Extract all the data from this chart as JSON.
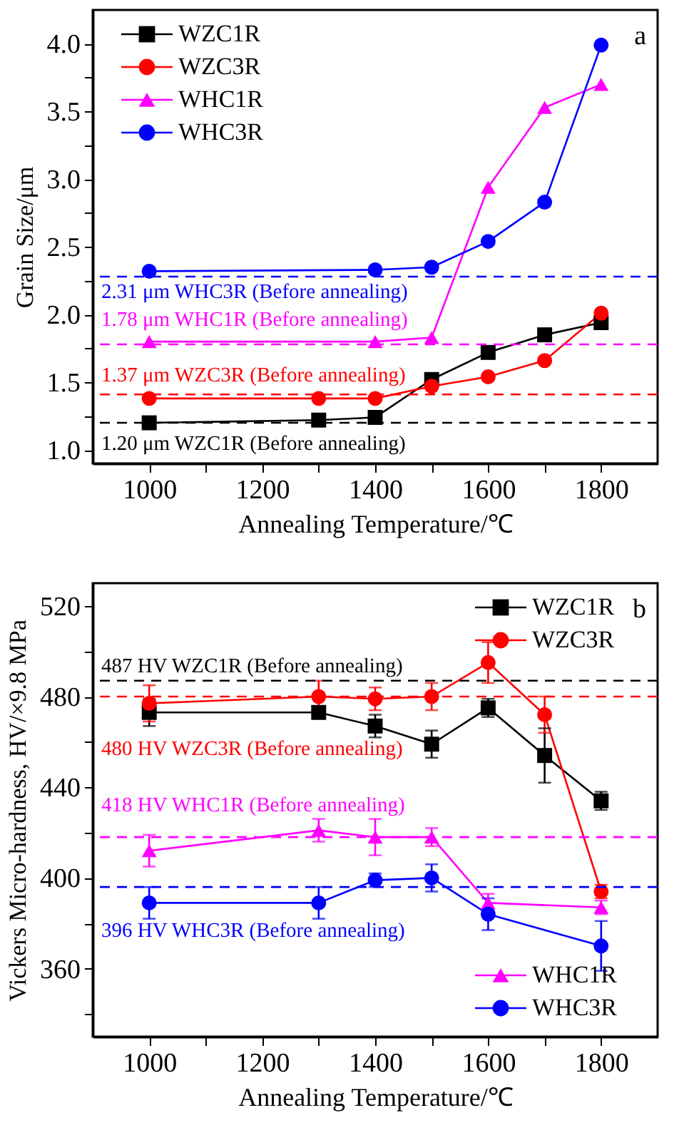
{
  "chart_data": [
    {
      "type": "line",
      "xlabel": "Annealing Temperature/℃",
      "ylabel": "Grain Size/μm",
      "annotations": [
        "a"
      ],
      "xlim": [
        900,
        1900
      ],
      "xticks": [
        1000,
        {
          "value": 1100,
          "label": null
        },
        1200,
        {
          "value": 1300,
          "label": null
        },
        1400,
        {
          "value": 1500,
          "label": null
        },
        1600,
        {
          "value": 1700,
          "label": null
        },
        1800
      ],
      "ylim": [
        0.9,
        4.25
      ],
      "yticks": [
        {
          "value": 1,
          "label": "1.0"
        },
        {
          "value": 1.25,
          "label": null
        },
        1.5,
        {
          "value": 1.75,
          "label": null
        },
        {
          "value": 2,
          "label": "2.0"
        },
        {
          "value": 2.25,
          "label": null
        },
        2.5,
        {
          "value": 2.75,
          "label": null
        },
        {
          "value": 3,
          "label": "3.0"
        },
        {
          "value": 3.25,
          "label": null
        },
        3.5,
        {
          "value": 3.75,
          "label": null
        },
        {
          "value": 4,
          "label": "4.0"
        }
      ],
      "legend": "top left",
      "line_style": "solid",
      "series": [
        {
          "name": "WZC1R",
          "color": "#000000",
          "marker": "square",
          "x": [
            1000,
            1300,
            1400,
            1500,
            1600,
            1700,
            1800
          ],
          "values": [
            1.2,
            1.22,
            1.24,
            1.52,
            1.72,
            1.85,
            1.94
          ]
        },
        {
          "name": "WZC3R",
          "color": "#ff0000",
          "marker": "circle",
          "x": [
            1000,
            1300,
            1400,
            1500,
            1600,
            1700,
            1800
          ],
          "values": [
            1.38,
            1.38,
            1.38,
            1.47,
            1.54,
            1.66,
            2.01
          ]
        },
        {
          "name": "WHC1R",
          "color": "#ff00ff",
          "marker": "triangle",
          "x": [
            1000,
            1400,
            1500,
            1600,
            1700,
            1800
          ],
          "values": [
            1.8,
            1.8,
            1.83,
            2.94,
            3.53,
            3.7
          ]
        },
        {
          "name": "WHC3R",
          "color": "#0000ff",
          "marker": "circle",
          "x": [
            1000,
            1400,
            1500,
            1600,
            1700,
            1800
          ],
          "values": [
            2.32,
            2.33,
            2.35,
            2.54,
            2.83,
            3.99
          ]
        }
      ],
      "ref_lines": [
        {
          "axis": "y",
          "value": 2.28,
          "label": "2.31 μm WHC3R (Before annealing)",
          "color": "#0000ff",
          "line_style": "dashed"
        },
        {
          "axis": "y",
          "value": 1.78,
          "label": "1.78 μm WHC1R (Before annealing)",
          "color": "#ff00ff",
          "line_style": "dashed"
        },
        {
          "axis": "y",
          "value": 1.41,
          "label": "1.37 μm WZC3R (Before annealing)",
          "color": "#ff0000",
          "line_style": "dashed"
        },
        {
          "axis": "y",
          "value": 1.2,
          "label": "1.20 μm WZC1R (Before annealing)",
          "color": "#000000",
          "line_style": "dashed"
        }
      ]
    },
    {
      "type": "line",
      "xlabel": "Annealing Temperature/℃",
      "ylabel": "Vickers Micro-hardness, HV/×9.8 MPa",
      "annotations": [
        "b"
      ],
      "xlim": [
        900,
        1900
      ],
      "xticks": [
        1000,
        {
          "value": 1100,
          "label": null
        },
        1200,
        {
          "value": 1300,
          "label": null
        },
        1400,
        {
          "value": 1500,
          "label": null
        },
        1600,
        {
          "value": 1700,
          "label": null
        },
        1800
      ],
      "ylim": [
        330,
        530
      ],
      "yticks": [
        {
          "value": 340,
          "label": null
        },
        360,
        {
          "value": 380,
          "label": null
        },
        400,
        {
          "value": 420,
          "label": null
        },
        440,
        {
          "value": 460,
          "label": null
        },
        480,
        {
          "value": 500,
          "label": null
        },
        520
      ],
      "legend": "right",
      "line_style": "solid",
      "series": [
        {
          "name": "WZC1R",
          "color": "#000000",
          "marker": "square",
          "x": [
            1000,
            1300,
            1400,
            1500,
            1600,
            1700,
            1800
          ],
          "values": [
            473,
            473,
            467,
            459,
            475,
            454,
            434
          ],
          "errors": [
            6,
            2,
            5,
            6,
            4,
            12,
            4
          ]
        },
        {
          "name": "WZC3R",
          "color": "#ff0000",
          "marker": "circle",
          "x": [
            1000,
            1300,
            1400,
            1500,
            1600,
            1700,
            1800
          ],
          "values": [
            477,
            480,
            479,
            480,
            495,
            472,
            394
          ],
          "errors": [
            8,
            7,
            5,
            6,
            9,
            8,
            3
          ]
        },
        {
          "name": "WHC1R",
          "color": "#ff00ff",
          "marker": "triangle",
          "x": [
            1000,
            1300,
            1400,
            1500,
            1600,
            1800
          ],
          "values": [
            412,
            421,
            418,
            418,
            389,
            387
          ],
          "errors": [
            7,
            5,
            8,
            4,
            4,
            3
          ]
        },
        {
          "name": "WHC3R",
          "color": "#0000ff",
          "marker": "circle",
          "x": [
            1000,
            1300,
            1400,
            1500,
            1600,
            1800
          ],
          "values": [
            389,
            389,
            399,
            400,
            384,
            370
          ],
          "errors": [
            7,
            7,
            3,
            6,
            7,
            11
          ]
        }
      ],
      "ref_lines": [
        {
          "axis": "y",
          "value": 487,
          "label": "487 HV WZC1R (Before annealing)",
          "color": "#000000",
          "line_style": "dashed"
        },
        {
          "axis": "y",
          "value": 480,
          "label": "480 HV WZC3R (Before annealing)",
          "color": "#ff0000",
          "line_style": "dashed"
        },
        {
          "axis": "y",
          "value": 418,
          "label": "418 HV WHC1R (Before annealing)",
          "color": "#ff00ff",
          "line_style": "dashed"
        },
        {
          "axis": "y",
          "value": 396,
          "label": "396 HV WHC3R (Before annealing)",
          "color": "#0000ff",
          "line_style": "dashed"
        }
      ]
    }
  ]
}
